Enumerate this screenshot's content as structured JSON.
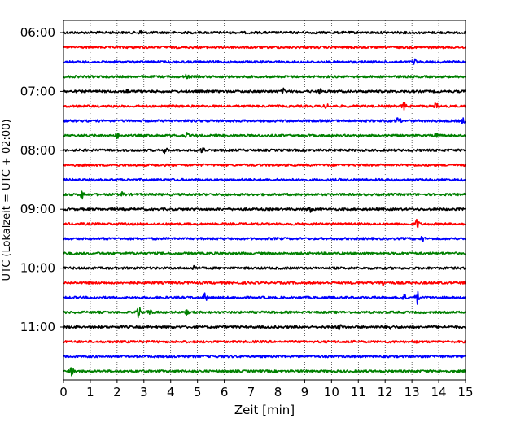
{
  "chart_data": {
    "type": "line",
    "title": "",
    "xlabel": "Zeit  [min]",
    "ylabel": "UTC (Lokalzeit = UTC + 02:00)",
    "xlim": [
      0,
      15
    ],
    "xticks": [
      "0",
      "1",
      "2",
      "3",
      "4",
      "5",
      "6",
      "7",
      "8",
      "9",
      "10",
      "11",
      "12",
      "13",
      "14",
      "15"
    ],
    "yticks": [
      "06:00",
      "07:00",
      "08:00",
      "09:00",
      "10:00",
      "11:00"
    ],
    "grid": "vertical-dotted",
    "trace_interval_minutes": 15,
    "traces": [
      {
        "start": "06:00",
        "color": "#000000",
        "events": [
          [
            2.9,
            0.3
          ]
        ]
      },
      {
        "start": "06:15",
        "color": "#ff0000",
        "events": []
      },
      {
        "start": "06:30",
        "color": "#0000ff",
        "events": [
          [
            13.1,
            0.4
          ]
        ]
      },
      {
        "start": "06:45",
        "color": "#008000",
        "events": [
          [
            4.6,
            0.3
          ]
        ]
      },
      {
        "start": "07:00",
        "color": "#000000",
        "events": [
          [
            2.4,
            0.3
          ],
          [
            8.2,
            0.3
          ],
          [
            9.6,
            0.3
          ]
        ]
      },
      {
        "start": "07:15",
        "color": "#ff0000",
        "events": [
          [
            9.8,
            0.4
          ],
          [
            12.7,
            0.5
          ],
          [
            13.9,
            0.4
          ]
        ]
      },
      {
        "start": "07:30",
        "color": "#0000ff",
        "events": [
          [
            12.5,
            0.6
          ],
          [
            14.9,
            0.3
          ]
        ]
      },
      {
        "start": "07:45",
        "color": "#008000",
        "events": [
          [
            2.0,
            0.3
          ],
          [
            4.6,
            0.3
          ],
          [
            13.9,
            0.3
          ]
        ]
      },
      {
        "start": "08:00",
        "color": "#000000",
        "events": [
          [
            3.8,
            0.4
          ],
          [
            5.2,
            0.5
          ]
        ]
      },
      {
        "start": "08:15",
        "color": "#ff0000",
        "events": []
      },
      {
        "start": "08:30",
        "color": "#0000ff",
        "events": []
      },
      {
        "start": "08:45",
        "color": "#008000",
        "events": [
          [
            0.7,
            0.6
          ],
          [
            2.2,
            0.3
          ]
        ]
      },
      {
        "start": "09:00",
        "color": "#000000",
        "events": [
          [
            9.2,
            0.3
          ]
        ]
      },
      {
        "start": "09:15",
        "color": "#ff0000",
        "events": [
          [
            13.2,
            0.7
          ]
        ]
      },
      {
        "start": "09:30",
        "color": "#0000ff",
        "events": [
          [
            13.4,
            0.4
          ]
        ]
      },
      {
        "start": "09:45",
        "color": "#008000",
        "events": []
      },
      {
        "start": "10:00",
        "color": "#000000",
        "events": [
          [
            4.9,
            0.4
          ]
        ]
      },
      {
        "start": "10:15",
        "color": "#ff0000",
        "events": [
          [
            11.9,
            0.4
          ]
        ]
      },
      {
        "start": "10:30",
        "color": "#0000ff",
        "events": [
          [
            5.3,
            0.6
          ],
          [
            13.2,
            0.9
          ],
          [
            12.7,
            0.4
          ]
        ]
      },
      {
        "start": "10:45",
        "color": "#008000",
        "events": [
          [
            2.8,
            0.9
          ],
          [
            3.2,
            0.4
          ],
          [
            4.6,
            0.3
          ]
        ]
      },
      {
        "start": "11:00",
        "color": "#000000",
        "events": [
          [
            10.3,
            0.4
          ],
          [
            12.2,
            0.3
          ]
        ]
      },
      {
        "start": "11:15",
        "color": "#ff0000",
        "events": [
          [
            13.1,
            0.3
          ]
        ]
      },
      {
        "start": "11:30",
        "color": "#0000ff",
        "events": []
      },
      {
        "start": "11:45",
        "color": "#008000",
        "events": [
          [
            0.3,
            0.5
          ]
        ]
      }
    ]
  }
}
